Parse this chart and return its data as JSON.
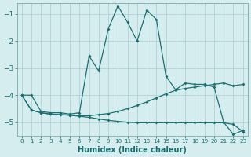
{
  "xlabel": "Humidex (Indice chaleur)",
  "bg_color": "#d5edef",
  "grid_color": "#aacdd1",
  "line_color": "#1a7070",
  "xlim": [
    -0.5,
    23.5
  ],
  "ylim": [
    -5.5,
    -0.6
  ],
  "yticks": [
    -5,
    -4,
    -3,
    -2,
    -1
  ],
  "xticks": [
    0,
    1,
    2,
    3,
    4,
    5,
    6,
    7,
    8,
    9,
    10,
    11,
    12,
    13,
    14,
    15,
    16,
    17,
    18,
    19,
    20,
    21,
    22,
    23
  ],
  "line1_x": [
    0,
    1,
    2,
    3,
    4,
    5,
    6,
    7,
    8,
    9,
    10,
    11,
    12,
    13,
    14,
    15,
    16,
    17,
    18,
    19,
    20,
    21,
    22,
    23
  ],
  "line1_y": [
    -4.0,
    -4.0,
    -4.6,
    -4.65,
    -4.65,
    -4.7,
    -4.65,
    -2.55,
    -3.1,
    -1.55,
    -0.7,
    -1.3,
    -2.0,
    -0.85,
    -1.2,
    -3.3,
    -3.8,
    -3.55,
    -3.6,
    -3.6,
    -3.7,
    -5.0,
    -5.45,
    -5.3
  ],
  "line2_x": [
    0,
    1,
    2,
    3,
    4,
    5,
    6,
    7,
    8,
    9,
    10,
    11,
    12,
    13,
    14,
    15,
    16,
    17,
    18,
    19,
    20,
    21,
    22,
    23
  ],
  "line2_y": [
    -4.0,
    -4.55,
    -4.65,
    -4.7,
    -4.72,
    -4.74,
    -4.76,
    -4.76,
    -4.72,
    -4.68,
    -4.6,
    -4.5,
    -4.38,
    -4.25,
    -4.1,
    -3.95,
    -3.82,
    -3.75,
    -3.7,
    -3.65,
    -3.6,
    -3.55,
    -3.65,
    -3.6
  ],
  "line3_x": [
    0,
    1,
    2,
    3,
    4,
    5,
    6,
    7,
    8,
    9,
    10,
    11,
    12,
    13,
    14,
    15,
    16,
    17,
    18,
    19,
    20,
    21,
    22,
    23
  ],
  "line3_y": [
    -4.0,
    -4.55,
    -4.65,
    -4.7,
    -4.72,
    -4.74,
    -4.78,
    -4.82,
    -4.88,
    -4.93,
    -4.97,
    -5.0,
    -5.02,
    -5.02,
    -5.02,
    -5.02,
    -5.02,
    -5.02,
    -5.02,
    -5.02,
    -5.02,
    -5.02,
    -5.08,
    -5.35
  ]
}
